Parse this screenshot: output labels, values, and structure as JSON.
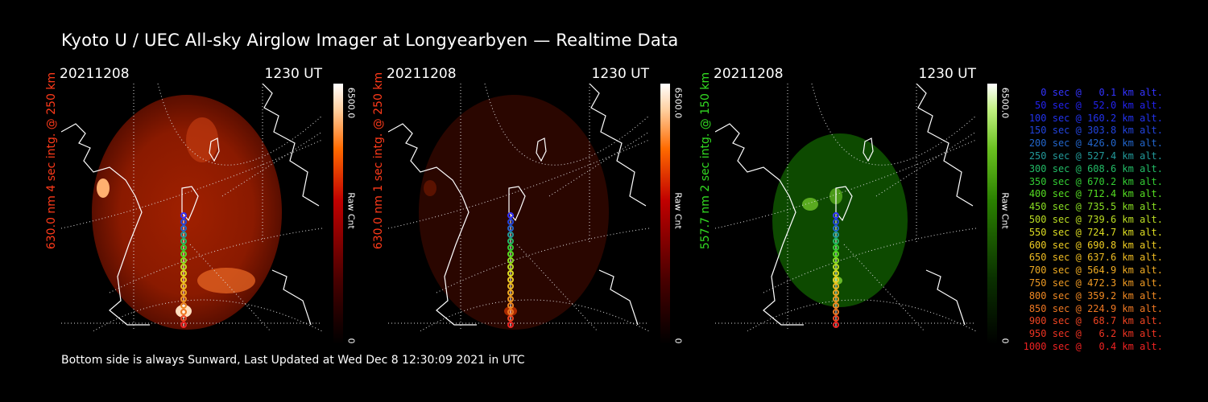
{
  "title": "Kyoto U / UEC All-sky Airglow Imager at Longyearbyen — Realtime Data",
  "footer": "Bottom side is always Sunward, Last Updated at Wed Dec  8 12:30:09 2021 in UTC",
  "panels": [
    {
      "date": "20211208",
      "time": "1230 UT",
      "label": "630.0 nm 4 sec intg. @ 250 km",
      "label_color": "#ff3a1a",
      "colorbar_max": "6500.0",
      "colorbar_mid": "Raw Cnt",
      "colorbar_min": "0",
      "palette": "red",
      "brightness": "high"
    },
    {
      "date": "20211208",
      "time": "1230 UT",
      "label": "630.0 nm 1 sec intg. @ 250 km",
      "label_color": "#ff3a1a",
      "colorbar_max": "6500.0",
      "colorbar_mid": "Raw Cnt",
      "colorbar_min": "0",
      "palette": "red",
      "brightness": "low"
    },
    {
      "date": "20211208",
      "time": "1230 UT",
      "label": "557.7 nm 2 sec intg. @ 150 km",
      "label_color": "#33dd22",
      "colorbar_max": "6500.0",
      "colorbar_mid": "Raw Cnt",
      "colorbar_min": "0",
      "palette": "green",
      "brightness": "medium"
    }
  ],
  "legend": [
    {
      "text": "0 sec @   0.1 km alt.",
      "color": "#3333ff"
    },
    {
      "text": "50 sec @  52.0 km alt.",
      "color": "#2222ee"
    },
    {
      "text": "100 sec @ 160.2 km alt.",
      "color": "#2233ee"
    },
    {
      "text": "150 sec @ 303.8 km alt.",
      "color": "#2244dd"
    },
    {
      "text": "200 sec @ 426.0 km alt.",
      "color": "#2266cc"
    },
    {
      "text": "250 sec @ 527.4 km alt.",
      "color": "#229999"
    },
    {
      "text": "300 sec @ 608.6 km alt.",
      "color": "#22bb66"
    },
    {
      "text": "350 sec @ 670.2 km alt.",
      "color": "#33cc33"
    },
    {
      "text": "400 sec @ 712.4 km alt.",
      "color": "#55dd22"
    },
    {
      "text": "450 sec @ 735.5 km alt.",
      "color": "#88dd22"
    },
    {
      "text": "500 sec @ 739.6 km alt.",
      "color": "#bbdd22"
    },
    {
      "text": "550 sec @ 724.7 km alt.",
      "color": "#dddd22"
    },
    {
      "text": "600 sec @ 690.8 km alt.",
      "color": "#eecc22"
    },
    {
      "text": "650 sec @ 637.6 km alt.",
      "color": "#eebb22"
    },
    {
      "text": "700 sec @ 564.9 km alt.",
      "color": "#eeaa22"
    },
    {
      "text": "750 sec @ 472.3 km alt.",
      "color": "#ee9922"
    },
    {
      "text": "800 sec @ 359.2 km alt.",
      "color": "#ee8822"
    },
    {
      "text": "850 sec @ 224.9 km alt.",
      "color": "#ee7722"
    },
    {
      "text": "900 sec @  68.7 km alt.",
      "color": "#ee4422"
    },
    {
      "text": "950 sec @   6.2 km alt.",
      "color": "#ee3322"
    },
    {
      "text": "1000 sec @   0.4 km alt.",
      "color": "#ee2222"
    }
  ]
}
